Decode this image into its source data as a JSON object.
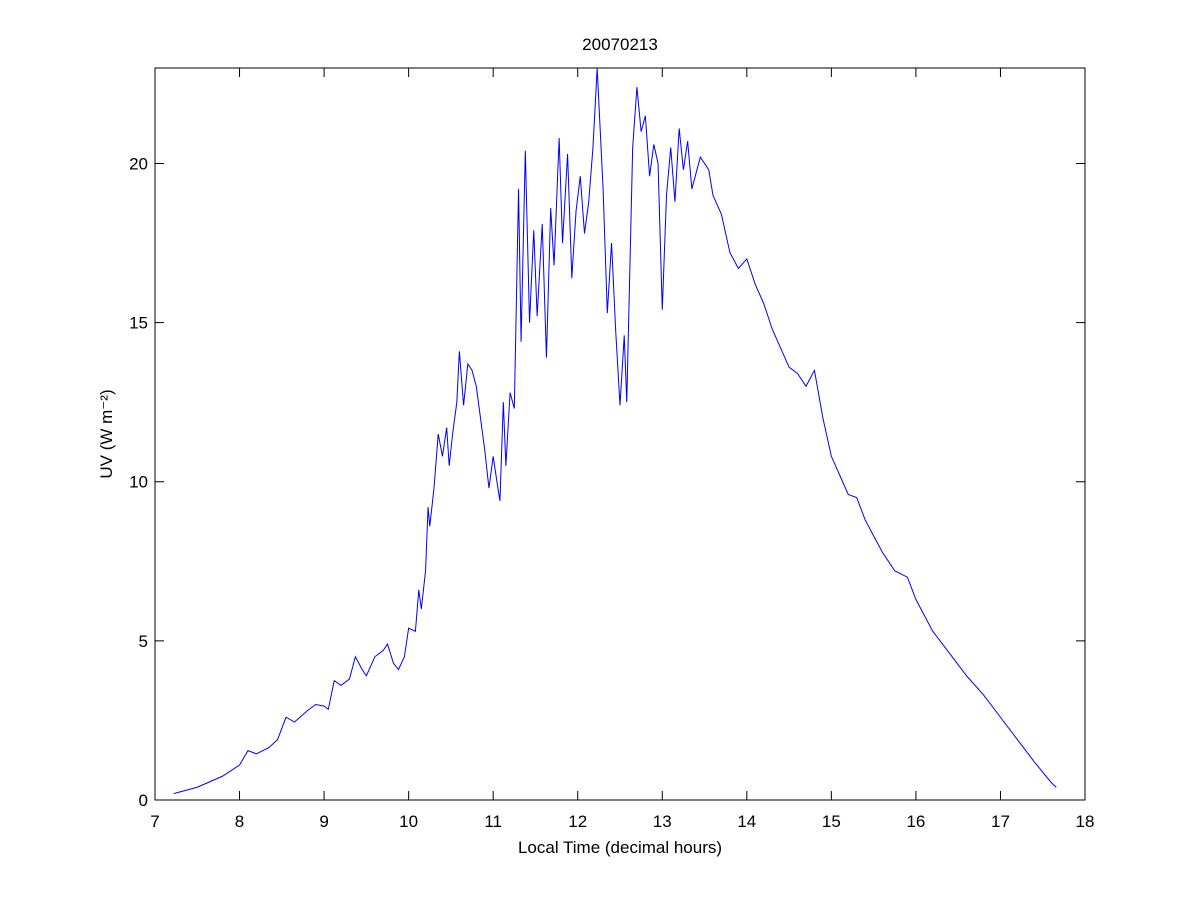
{
  "chart_data": {
    "type": "line",
    "title": "20070213",
    "xlabel": "Local Time (decimal hours)",
    "ylabel": "UV (W m⁻²)",
    "color": "#0000ff",
    "xlim": [
      7,
      18
    ],
    "ylim": [
      0,
      23
    ],
    "xticks": [
      7,
      8,
      9,
      10,
      11,
      12,
      13,
      14,
      15,
      16,
      17,
      18
    ],
    "yticks": [
      0,
      5,
      10,
      15,
      20
    ],
    "grid": false,
    "x": [
      7.22,
      7.5,
      7.8,
      8.0,
      8.1,
      8.2,
      8.35,
      8.45,
      8.55,
      8.65,
      8.8,
      8.9,
      9.0,
      9.05,
      9.12,
      9.2,
      9.3,
      9.37,
      9.45,
      9.5,
      9.6,
      9.7,
      9.75,
      9.82,
      9.88,
      9.95,
      10.0,
      10.08,
      10.12,
      10.15,
      10.2,
      10.23,
      10.25,
      10.3,
      10.35,
      10.4,
      10.45,
      10.48,
      10.52,
      10.57,
      10.6,
      10.65,
      10.7,
      10.75,
      10.8,
      10.85,
      10.9,
      10.95,
      11.0,
      11.05,
      11.08,
      11.12,
      11.15,
      11.2,
      11.25,
      11.3,
      11.33,
      11.38,
      11.43,
      11.48,
      11.52,
      11.58,
      11.63,
      11.68,
      11.72,
      11.78,
      11.82,
      11.88,
      11.93,
      11.98,
      12.03,
      12.08,
      12.13,
      12.18,
      12.23,
      12.3,
      12.35,
      12.4,
      12.45,
      12.5,
      12.55,
      12.58,
      12.65,
      12.7,
      12.75,
      12.8,
      12.85,
      12.9,
      12.95,
      13.0,
      13.05,
      13.1,
      13.15,
      13.2,
      13.25,
      13.3,
      13.35,
      13.45,
      13.55,
      13.6,
      13.7,
      13.8,
      13.9,
      14.0,
      14.1,
      14.2,
      14.3,
      14.4,
      14.5,
      14.6,
      14.7,
      14.8,
      14.9,
      15.0,
      15.1,
      15.2,
      15.3,
      15.4,
      15.5,
      15.6,
      15.75,
      15.9,
      16.0,
      16.2,
      16.4,
      16.6,
      16.8,
      17.0,
      17.2,
      17.4,
      17.6,
      17.66
    ],
    "values": [
      0.2,
      0.4,
      0.75,
      1.1,
      1.55,
      1.45,
      1.65,
      1.9,
      2.6,
      2.45,
      2.8,
      3.0,
      2.95,
      2.85,
      3.75,
      3.6,
      3.8,
      4.5,
      4.1,
      3.9,
      4.5,
      4.7,
      4.9,
      4.3,
      4.1,
      4.5,
      5.4,
      5.3,
      6.6,
      6.0,
      7.2,
      9.2,
      8.6,
      9.8,
      11.5,
      10.8,
      11.7,
      10.5,
      11.5,
      12.5,
      14.1,
      12.4,
      13.7,
      13.5,
      13.0,
      12.0,
      11.0,
      9.8,
      10.8,
      9.9,
      9.4,
      12.5,
      10.5,
      12.8,
      12.3,
      19.2,
      14.4,
      20.4,
      15.0,
      17.9,
      15.2,
      18.1,
      13.9,
      18.6,
      16.8,
      20.8,
      17.5,
      20.3,
      16.4,
      18.5,
      19.6,
      17.8,
      18.8,
      20.5,
      23.0,
      19.2,
      15.3,
      17.5,
      14.7,
      12.4,
      14.6,
      12.5,
      20.5,
      22.4,
      21.0,
      21.5,
      19.6,
      20.6,
      20.0,
      15.4,
      19.0,
      20.5,
      18.8,
      21.1,
      19.8,
      20.7,
      19.2,
      20.2,
      19.8,
      19.0,
      18.4,
      17.2,
      16.7,
      17.0,
      16.2,
      15.6,
      14.8,
      14.2,
      13.6,
      13.4,
      13.0,
      13.5,
      12.0,
      10.8,
      10.2,
      9.6,
      9.5,
      8.8,
      8.3,
      7.8,
      7.2,
      7.0,
      6.3,
      5.3,
      4.6,
      3.9,
      3.3,
      2.6,
      1.9,
      1.2,
      0.55,
      0.4
    ]
  }
}
